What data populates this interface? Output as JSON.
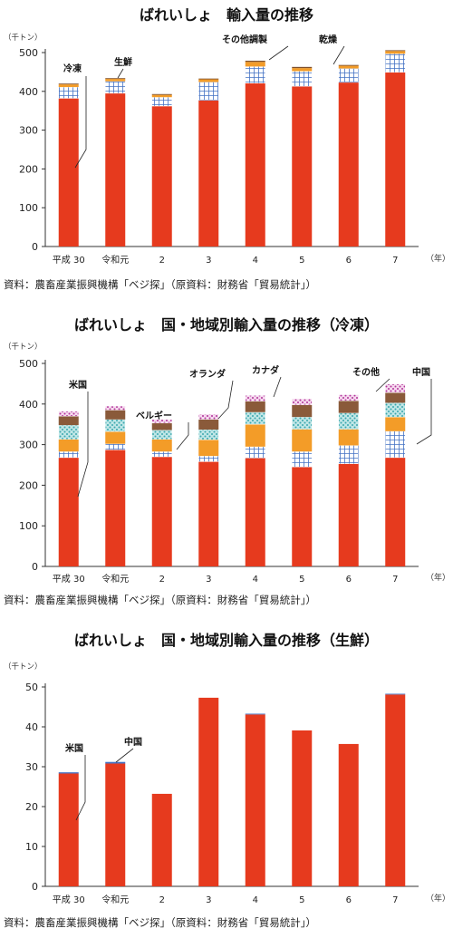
{
  "chart_data": [
    {
      "type": "bar",
      "stacked": true,
      "title": "ばれいしょ　輸入量の推移",
      "unit": "（千トン）",
      "categories": [
        "平成 30",
        "令和元",
        "2",
        "3",
        "4",
        "5",
        "6",
        "7"
      ],
      "x_unit": "（年）",
      "ylim": [
        0,
        500
      ],
      "yticks": [
        0,
        100,
        200,
        300,
        400,
        500
      ],
      "series": [
        {
          "name": "冷凍",
          "color": "#e63a1e",
          "pattern": "solid",
          "values": [
            382,
            395,
            362,
            377,
            421,
            413,
            423,
            449
          ]
        },
        {
          "name": "生鮮",
          "color": "#4472c4",
          "pattern": "grid",
          "values": [
            29,
            31,
            23,
            47,
            43,
            39,
            36,
            48
          ]
        },
        {
          "name": "その他調製",
          "color": "#f39c28",
          "pattern": "solid",
          "values": [
            7,
            6,
            6,
            7,
            12,
            8,
            7,
            7
          ]
        },
        {
          "name": "乾燥",
          "color": "#7f4f2a",
          "pattern": "solid",
          "values": [
            2,
            2,
            2,
            2,
            3,
            3,
            2,
            2
          ]
        }
      ],
      "annotations": [
        "冷凍",
        "生鮮",
        "その他調製",
        "乾燥"
      ],
      "source": "資料：農畜産業振興機構「ベジ探」（原資料：財務省「貿易統計」）",
      "grid": false
    },
    {
      "type": "bar",
      "stacked": true,
      "title": "ばれいしょ　国・地域別輸入量の推移（冷凍）",
      "unit": "（千トン）",
      "categories": [
        "平成 30",
        "令和元",
        "2",
        "3",
        "4",
        "5",
        "6",
        "7"
      ],
      "x_unit": "（年）",
      "ylim": [
        0,
        500
      ],
      "yticks": [
        0,
        100,
        200,
        300,
        400,
        500
      ],
      "series": [
        {
          "name": "米国",
          "color": "#e63a1e",
          "pattern": "solid",
          "values": [
            268,
            287,
            270,
            258,
            267,
            245,
            253,
            268
          ]
        },
        {
          "name": "中国",
          "color": "#4472c4",
          "pattern": "grid",
          "values": [
            15,
            15,
            13,
            14,
            28,
            38,
            45,
            65
          ]
        },
        {
          "name": "ベルギー",
          "color": "#f39c28",
          "pattern": "solid",
          "values": [
            30,
            30,
            30,
            40,
            55,
            55,
            40,
            35
          ]
        },
        {
          "name": "オランダ",
          "color": "#4cb3b8",
          "pattern": "dots",
          "values": [
            35,
            30,
            23,
            25,
            30,
            30,
            40,
            35
          ]
        },
        {
          "name": "カナダ",
          "color": "#8a5a3a",
          "pattern": "solid",
          "values": [
            22,
            23,
            17,
            25,
            27,
            30,
            30,
            25
          ]
        },
        {
          "name": "その他",
          "color": "#c04aa0",
          "pattern": "dots",
          "values": [
            12,
            10,
            9,
            13,
            14,
            15,
            15,
            21
          ]
        }
      ],
      "annotations": [
        "米国",
        "ベルギー",
        "オランダ",
        "カナダ",
        "その他",
        "中国"
      ],
      "source": "資料：農畜産業振興機構「ベジ探」（原資料：財務省「貿易統計」）",
      "grid": false
    },
    {
      "type": "bar",
      "stacked": true,
      "title": "ばれいしょ　国・地域別輸入量の推移（生鮮）",
      "unit": "（千トン）",
      "categories": [
        "平成 30",
        "令和元",
        "2",
        "3",
        "4",
        "5",
        "6",
        "7"
      ],
      "x_unit": "（年）",
      "ylim": [
        0,
        50
      ],
      "yticks": [
        0,
        10,
        20,
        30,
        40,
        50
      ],
      "series": [
        {
          "name": "米国",
          "color": "#e63a1e",
          "pattern": "solid",
          "values": [
            28.3,
            30.8,
            23.2,
            47.3,
            43.1,
            39.1,
            35.7,
            48.1
          ]
        },
        {
          "name": "中国",
          "color": "#4472c4",
          "pattern": "solid",
          "values": [
            0.3,
            0.4,
            0,
            0,
            0.2,
            0,
            0,
            0.2
          ]
        }
      ],
      "annotations": [
        "米国",
        "中国"
      ],
      "source": "資料：農畜産業振興機構「ベジ探」（原資料：財務省「貿易統計」）",
      "grid": false
    }
  ]
}
